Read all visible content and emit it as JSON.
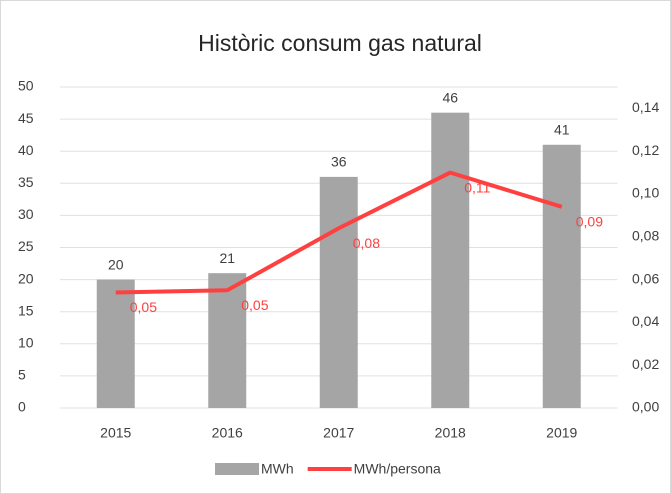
{
  "chart_data": {
    "type": "bar_line",
    "title": "Històric consum gas natural",
    "categories": [
      "2015",
      "2016",
      "2017",
      "2018",
      "2019"
    ],
    "series": [
      {
        "name": "MWh",
        "type": "bar",
        "color": "#a5a5a5",
        "values": [
          20,
          21,
          36,
          46,
          41
        ]
      },
      {
        "name": "MWh/persona",
        "type": "line",
        "axis": "y2",
        "color": "#ff4040",
        "values": [
          0.054,
          0.055,
          0.084,
          0.11,
          0.094
        ],
        "value_labels": [
          "0,05",
          "0,05",
          "0,08",
          "0,11",
          "0,09"
        ]
      }
    ],
    "ylim": [
      0,
      50
    ],
    "yticks": [
      0,
      5,
      10,
      15,
      20,
      25,
      30,
      35,
      40,
      45,
      50
    ],
    "y2lim": [
      0,
      0.15
    ],
    "y2ticks": [
      {
        "value": 0,
        "label": "0,00"
      },
      {
        "value": 0.02,
        "label": "0,02"
      },
      {
        "value": 0.04,
        "label": "0,04"
      },
      {
        "value": 0.06,
        "label": "0,06"
      },
      {
        "value": 0.08,
        "label": "0,08"
      },
      {
        "value": 0.1,
        "label": "0,10"
      },
      {
        "value": 0.12,
        "label": "0,12"
      },
      {
        "value": 0.14,
        "label": "0,14"
      }
    ],
    "grid": true,
    "legend": "bottom"
  }
}
